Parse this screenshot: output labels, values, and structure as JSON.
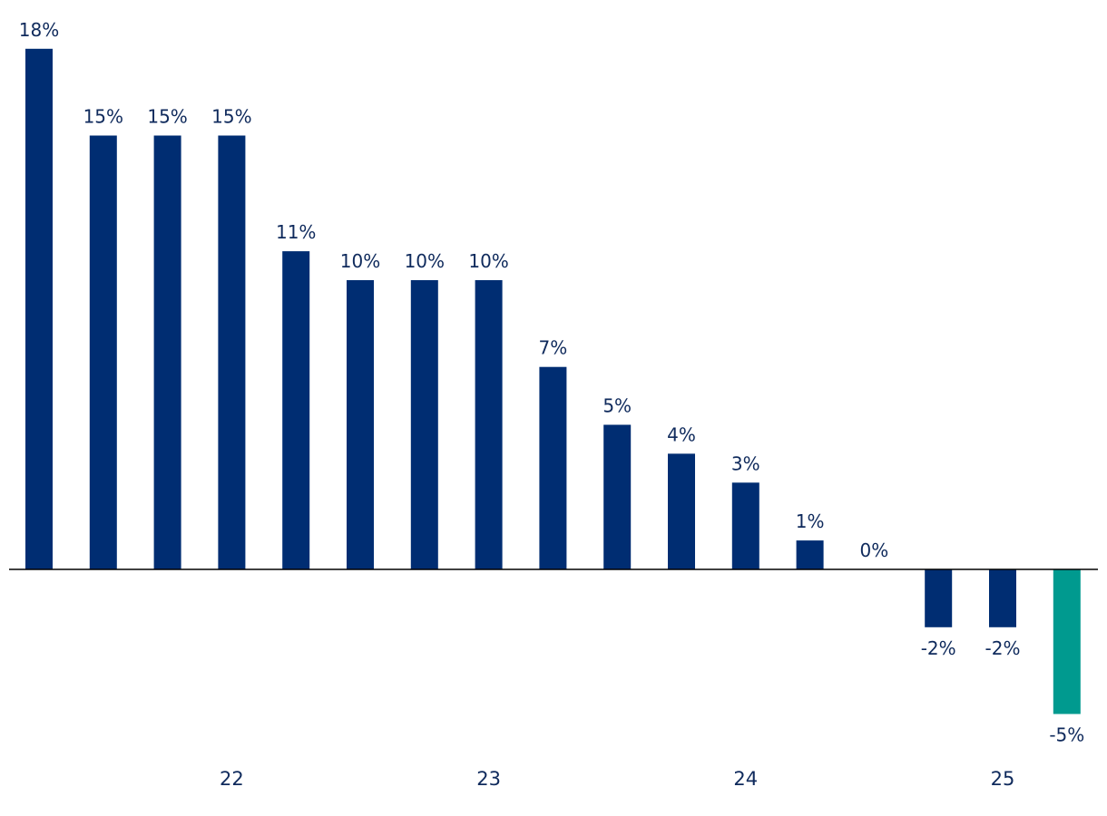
{
  "chart_data": {
    "type": "bar",
    "categories": [
      "",
      "",
      "",
      "22",
      "",
      "",
      "",
      "23",
      "",
      "",
      "",
      "24",
      "",
      "",
      "",
      "25",
      ""
    ],
    "values": [
      18,
      15,
      15,
      15,
      11,
      10,
      10,
      10,
      7,
      5,
      4,
      3,
      1,
      0,
      -2,
      -2,
      -5
    ],
    "value_labels": [
      "18%",
      "15%",
      "15%",
      "15%",
      "11%",
      "10%",
      "10%",
      "10%",
      "7%",
      "5%",
      "4%",
      "3%",
      "1%",
      "0%",
      "-2%",
      "-2%",
      "-5%"
    ],
    "x_tick_labels": [
      {
        "category_index": 3,
        "label": "22"
      },
      {
        "category_index": 7,
        "label": "23"
      },
      {
        "category_index": 11,
        "label": "24"
      },
      {
        "category_index": 15,
        "label": "25"
      }
    ],
    "highlight_index": 16,
    "colors": {
      "bar": "#002d72",
      "highlight": "#009a8f",
      "axis": "#000000",
      "text": "#0f2a5c"
    },
    "ylim": [
      -5,
      18
    ],
    "grid": false,
    "title": "",
    "xlabel": "",
    "ylabel": ""
  }
}
